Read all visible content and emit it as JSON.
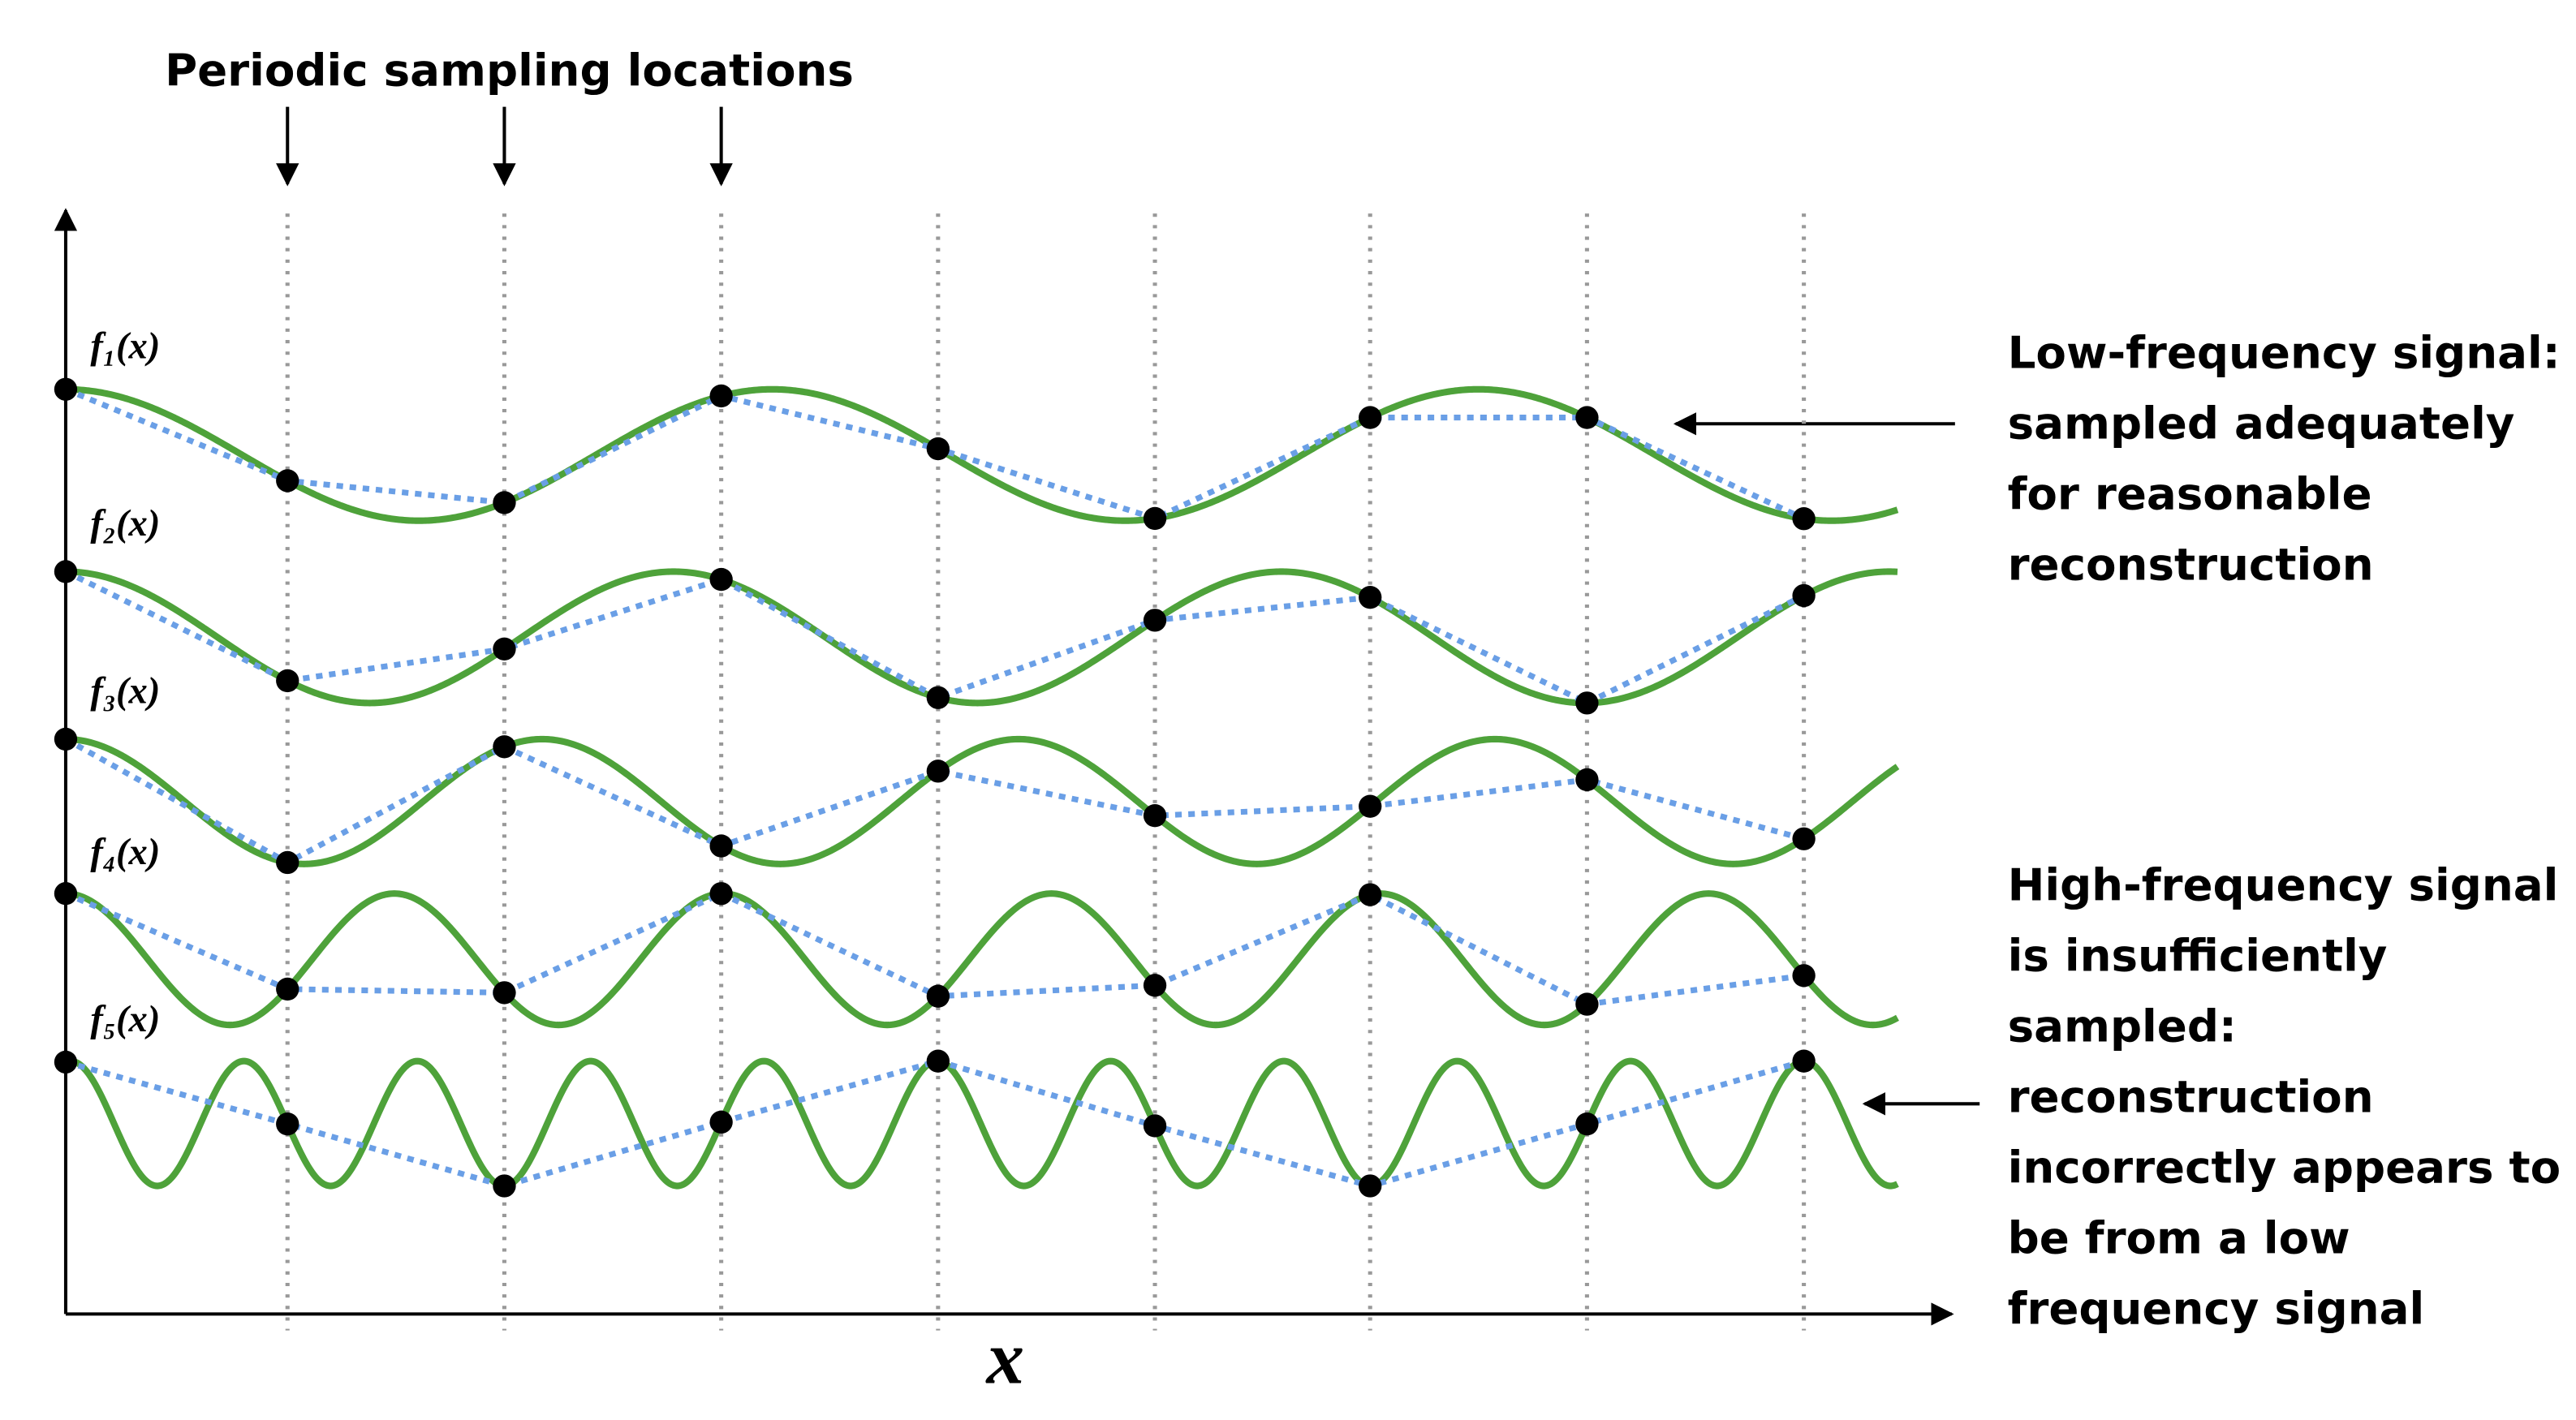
{
  "title": "Periodic sampling locations",
  "axis_label": "x",
  "signals": [
    {
      "label": "f₁(x)"
    },
    {
      "label": "f₂(x)"
    },
    {
      "label": "f₃(x)"
    },
    {
      "label": "f₄(x)"
    },
    {
      "label": "f₅(x)"
    }
  ],
  "annotations": [
    {
      "lines": [
        "Low-frequency signal:",
        "sampled adequately",
        "for reasonable",
        "reconstruction"
      ]
    },
    {
      "lines": [
        "High-frequency signal",
        "is insufficiently",
        "sampled:",
        "reconstruction",
        "incorrectly appears to",
        "be from a low",
        "frequency signal"
      ]
    }
  ]
}
